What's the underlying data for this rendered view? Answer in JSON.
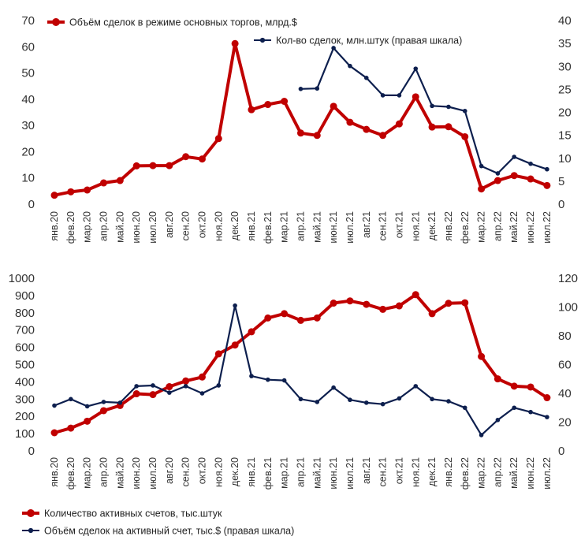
{
  "chart_data": [
    {
      "type": "line",
      "categories": [
        "янв.20",
        "фев.20",
        "мар.20",
        "апр.20",
        "май.20",
        "июн.20",
        "июл.20",
        "авг.20",
        "сен.20",
        "окт.20",
        "ноя.20",
        "дек.20",
        "янв.21",
        "фев.21",
        "мар.21",
        "апр.21",
        "май.21",
        "июн.21",
        "июл.21",
        "авг.21",
        "сен.21",
        "окт.21",
        "ноя.21",
        "дек.21",
        "янв.22",
        "фев.22",
        "мар.22",
        "апр.22",
        "май.22",
        "июн.22",
        "июл.22"
      ],
      "left_axis": {
        "ylim": [
          0,
          70
        ],
        "ticks": [
          "0",
          "10",
          "20",
          "30",
          "40",
          "50",
          "60",
          "70"
        ]
      },
      "right_axis": {
        "ylim": [
          0,
          40
        ],
        "ticks": [
          "0",
          "5",
          "10",
          "15",
          "20",
          "25",
          "30",
          "35",
          "40"
        ]
      },
      "series": [
        {
          "name": "Объём сделок в режиме основных торгов, млрд.$",
          "axis": "left",
          "color": "#c00000",
          "values": [
            3.4,
            4.7,
            5.4,
            8.1,
            9.0,
            14.6,
            14.7,
            14.7,
            18.1,
            17.2,
            25.0,
            61.2,
            36.0,
            38.0,
            39.2,
            27.1,
            26.2,
            37.3,
            31.2,
            28.5,
            26.2,
            30.6,
            40.9,
            29.4,
            29.5,
            25.7,
            5.8,
            9.0,
            10.9,
            9.6,
            7.1
          ]
        },
        {
          "name": "Кол-во сделок, млн.штук (правая шкала)",
          "axis": "right",
          "color": "#0d1f4e",
          "values": [
            null,
            null,
            null,
            null,
            null,
            null,
            null,
            null,
            null,
            null,
            null,
            null,
            null,
            null,
            null,
            25.1,
            25.2,
            34.0,
            30.1,
            27.5,
            23.7,
            23.7,
            29.5,
            21.4,
            21.2,
            20.3,
            8.3,
            6.7,
            10.3,
            8.8,
            7.6
          ]
        }
      ]
    },
    {
      "type": "line",
      "categories": [
        "янв.20",
        "фев.20",
        "мар.20",
        "апр.20",
        "май.20",
        "июн.20",
        "июл.20",
        "авг.20",
        "сен.20",
        "окт.20",
        "ноя.20",
        "дек.20",
        "янв.21",
        "фев.21",
        "мар.21",
        "апр.21",
        "май.21",
        "июн.21",
        "июл.21",
        "авг.21",
        "сен.21",
        "окт.21",
        "ноя.21",
        "дек.21",
        "янв.22",
        "фев.22",
        "мар.22",
        "апр.22",
        "май.22",
        "июн.22",
        "июл.22"
      ],
      "left_axis": {
        "ylim": [
          0,
          1000
        ],
        "ticks": [
          "0",
          "100",
          "200",
          "300",
          "400",
          "500",
          "600",
          "700",
          "800",
          "900",
          "1000"
        ]
      },
      "right_axis": {
        "ylim": [
          0,
          120
        ],
        "ticks": [
          "0",
          "20",
          "40",
          "60",
          "80",
          "100",
          "120"
        ]
      },
      "series": [
        {
          "name": "Количество активных счетов, тыс.штук",
          "axis": "left",
          "color": "#c00000",
          "values": [
            105,
            132,
            172,
            233,
            263,
            331,
            326,
            372,
            405,
            428,
            562,
            613,
            690,
            770,
            795,
            756,
            770,
            856,
            869,
            849,
            820,
            840,
            905,
            795,
            855,
            858,
            547,
            417,
            375,
            370,
            308
          ]
        },
        {
          "name": "Объём сделок на активный счет, тыс.$ (правая шкала)",
          "axis": "right",
          "color": "#0d1f4e",
          "values": [
            31.5,
            36.0,
            31.0,
            34.0,
            33.5,
            45.0,
            45.5,
            40.5,
            45.0,
            40.0,
            45.5,
            101.0,
            52.0,
            49.5,
            49.0,
            36.0,
            34.0,
            44.0,
            35.5,
            33.5,
            32.5,
            36.5,
            45.0,
            36.0,
            34.5,
            30.0,
            11.0,
            21.5,
            30.0,
            27.0,
            23.5
          ]
        }
      ]
    }
  ]
}
